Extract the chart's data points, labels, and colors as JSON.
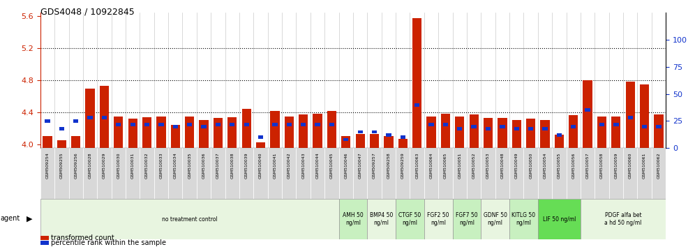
{
  "title": "GDS4048 / 10922845",
  "samples": [
    "GSM509254",
    "GSM509255",
    "GSM509256",
    "GSM510028",
    "GSM510029",
    "GSM510030",
    "GSM510031",
    "GSM510032",
    "GSM510033",
    "GSM510034",
    "GSM510035",
    "GSM510036",
    "GSM510037",
    "GSM510038",
    "GSM510039",
    "GSM510040",
    "GSM510041",
    "GSM510042",
    "GSM510043",
    "GSM510044",
    "GSM510045",
    "GSM510046",
    "GSM510047",
    "GSM509257",
    "GSM509258",
    "GSM509259",
    "GSM510063",
    "GSM510064",
    "GSM510065",
    "GSM510051",
    "GSM510052",
    "GSM510053",
    "GSM510048",
    "GSM510049",
    "GSM510050",
    "GSM510054",
    "GSM510055",
    "GSM510056",
    "GSM510057",
    "GSM510058",
    "GSM510059",
    "GSM510060",
    "GSM510061",
    "GSM510062"
  ],
  "red_values": [
    4.1,
    4.05,
    4.1,
    4.7,
    4.73,
    4.35,
    4.32,
    4.34,
    4.35,
    4.24,
    4.35,
    4.3,
    4.33,
    4.34,
    4.44,
    4.02,
    4.42,
    4.35,
    4.37,
    4.38,
    4.42,
    4.1,
    4.13,
    4.13,
    4.1,
    4.07,
    5.58,
    4.35,
    4.38,
    4.35,
    4.37,
    4.33,
    4.33,
    4.3,
    4.32,
    4.3,
    4.12,
    4.36,
    4.8,
    4.35,
    4.35,
    4.78,
    4.75,
    4.37
  ],
  "blue_values": [
    25,
    18,
    25,
    28,
    28,
    22,
    22,
    22,
    22,
    20,
    22,
    20,
    22,
    22,
    22,
    10,
    22,
    22,
    22,
    22,
    22,
    8,
    15,
    15,
    12,
    10,
    40,
    22,
    22,
    18,
    20,
    18,
    20,
    18,
    18,
    18,
    12,
    20,
    35,
    22,
    22,
    28,
    20,
    20
  ],
  "agent_groups": [
    {
      "label": "no treatment control",
      "start": 0,
      "end": 21,
      "color": "#e8f5e0"
    },
    {
      "label": "AMH 50\nng/ml",
      "start": 21,
      "end": 23,
      "color": "#c8f0c0"
    },
    {
      "label": "BMP4 50\nng/ml",
      "start": 23,
      "end": 25,
      "color": "#e8f5e0"
    },
    {
      "label": "CTGF 50\nng/ml",
      "start": 25,
      "end": 27,
      "color": "#c8f0c0"
    },
    {
      "label": "FGF2 50\nng/ml",
      "start": 27,
      "end": 29,
      "color": "#e8f5e0"
    },
    {
      "label": "FGF7 50\nng/ml",
      "start": 29,
      "end": 31,
      "color": "#c8f0c0"
    },
    {
      "label": "GDNF 50\nng/ml",
      "start": 31,
      "end": 33,
      "color": "#e8f5e0"
    },
    {
      "label": "KITLG 50\nng/ml",
      "start": 33,
      "end": 35,
      "color": "#c8f0c0"
    },
    {
      "label": "LIF 50 ng/ml",
      "start": 35,
      "end": 38,
      "color": "#66dd55"
    },
    {
      "label": "PDGF alfa bet\na hd 50 ng/ml",
      "start": 38,
      "end": 44,
      "color": "#e8f5e0"
    }
  ],
  "left_ylim": [
    3.95,
    5.65
  ],
  "left_yticks": [
    4.0,
    4.4,
    4.8,
    5.2,
    5.6
  ],
  "right_ylim": [
    0,
    125
  ],
  "right_yticks": [
    0,
    25,
    50,
    75,
    100
  ],
  "bar_color_red": "#cc2200",
  "bar_color_blue": "#1133cc",
  "bg_color": "#ffffff",
  "plot_bg": "#ffffff",
  "tick_color_left": "#cc2200",
  "tick_color_right": "#1133cc",
  "sample_box_color": "#d8d8d8",
  "grid_color": "#000000"
}
